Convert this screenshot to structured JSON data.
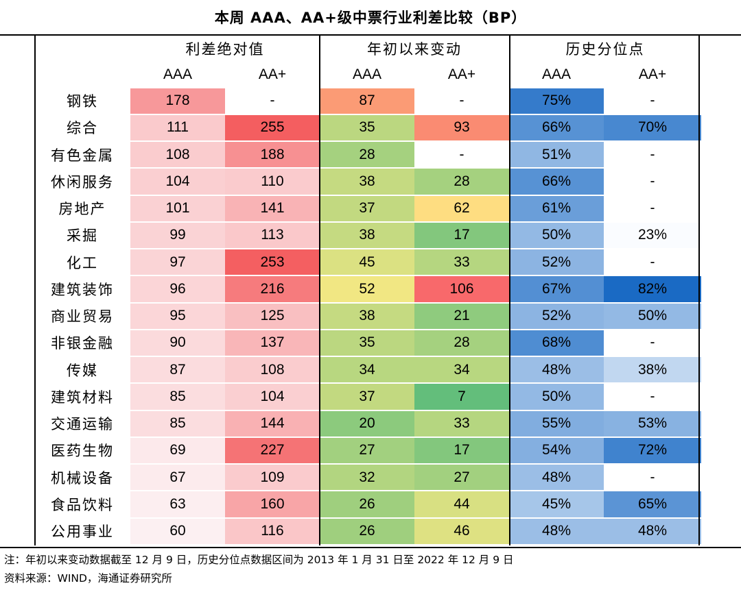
{
  "chart_data": {
    "type": "table",
    "title": "本周 AAA、AA+级中票行业利差比较（BP）",
    "column_groups": [
      "利差绝对值",
      "年初以来变动",
      "历史分位点"
    ],
    "sub_columns": [
      "AAA",
      "AA+"
    ],
    "rows": [
      {
        "industry": "钢铁",
        "values": [
          "178",
          "-",
          "87",
          "-",
          "75%",
          "-"
        ]
      },
      {
        "industry": "综合",
        "values": [
          "111",
          "255",
          "35",
          "93",
          "66%",
          "70%"
        ]
      },
      {
        "industry": "有色金属",
        "values": [
          "108",
          "188",
          "28",
          "-",
          "51%",
          "-"
        ]
      },
      {
        "industry": "休闲服务",
        "values": [
          "104",
          "110",
          "38",
          "28",
          "66%",
          "-"
        ]
      },
      {
        "industry": "房地产",
        "values": [
          "101",
          "141",
          "37",
          "62",
          "61%",
          "-"
        ]
      },
      {
        "industry": "采掘",
        "values": [
          "99",
          "113",
          "38",
          "17",
          "50%",
          "23%"
        ]
      },
      {
        "industry": "化工",
        "values": [
          "97",
          "253",
          "45",
          "33",
          "52%",
          "-"
        ]
      },
      {
        "industry": "建筑装饰",
        "values": [
          "96",
          "216",
          "52",
          "106",
          "67%",
          "82%"
        ]
      },
      {
        "industry": "商业贸易",
        "values": [
          "95",
          "125",
          "38",
          "21",
          "52%",
          "50%"
        ]
      },
      {
        "industry": "非银金融",
        "values": [
          "90",
          "137",
          "35",
          "28",
          "68%",
          "-"
        ]
      },
      {
        "industry": "传媒",
        "values": [
          "87",
          "108",
          "34",
          "34",
          "48%",
          "38%"
        ]
      },
      {
        "industry": "建筑材料",
        "values": [
          "85",
          "104",
          "37",
          "7",
          "50%",
          "-"
        ]
      },
      {
        "industry": "交通运输",
        "values": [
          "85",
          "144",
          "20",
          "33",
          "55%",
          "53%"
        ]
      },
      {
        "industry": "医药生物",
        "values": [
          "69",
          "227",
          "27",
          "17",
          "54%",
          "72%"
        ]
      },
      {
        "industry": "机械设备",
        "values": [
          "67",
          "109",
          "32",
          "27",
          "48%",
          "-"
        ]
      },
      {
        "industry": "食品饮料",
        "values": [
          "63",
          "160",
          "26",
          "44",
          "45%",
          "65%"
        ]
      },
      {
        "industry": "公用事业",
        "values": [
          "60",
          "116",
          "26",
          "46",
          "48%",
          "48%"
        ]
      }
    ]
  },
  "footer": {
    "note": "注：年初以来变动数据截至 12 月 9 日，历史分位点数据区间为 2013 年 1 月 31 日至 2022 年 12 月 9 日",
    "source": "资料来源：WIND，海通证券研究所"
  }
}
